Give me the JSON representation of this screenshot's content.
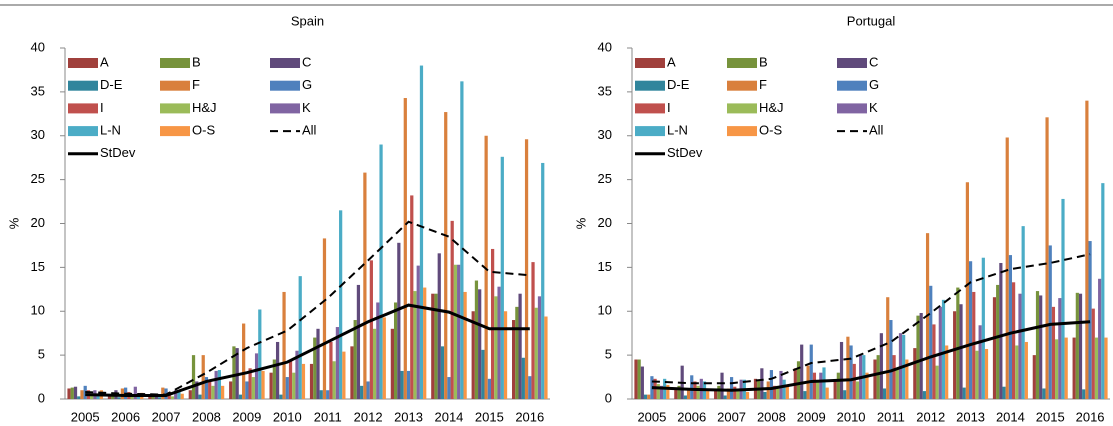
{
  "chart_data": [
    {
      "type": "bar",
      "title": "Spain",
      "y_label": "%",
      "categories": [
        "2005",
        "2006",
        "2007",
        "2008",
        "2009",
        "2010",
        "2011",
        "2012",
        "2013",
        "2014",
        "2015",
        "2016"
      ],
      "ylim": [
        0,
        40
      ],
      "yticks": [
        0,
        5,
        10,
        15,
        20,
        25,
        30,
        35,
        40
      ],
      "legend": "top-left",
      "legend_columns": 3,
      "series": [
        {
          "name": "A",
          "color": "#a0403c",
          "values": [
            1.2,
            0.5,
            0.3,
            1.0,
            2.0,
            3.0,
            4.0,
            6.0,
            8.0,
            12.0,
            10.0,
            9.0
          ]
        },
        {
          "name": "B",
          "color": "#77933c",
          "values": [
            1.3,
            0.5,
            0.4,
            5.0,
            6.0,
            4.5,
            7.0,
            9.0,
            11.0,
            12.0,
            13.5,
            10.5
          ]
        },
        {
          "name": "C",
          "color": "#604a7b",
          "values": [
            1.4,
            1.0,
            0.5,
            2.0,
            5.8,
            6.5,
            8.0,
            13.0,
            17.8,
            16.6,
            12.5,
            12.0
          ]
        },
        {
          "name": "D-E",
          "color": "#31859c",
          "values": [
            0.3,
            0.2,
            0.2,
            0.5,
            0.5,
            0.5,
            1.0,
            1.5,
            3.2,
            6.0,
            5.6,
            4.7
          ]
        },
        {
          "name": "F",
          "color": "#d9803d",
          "values": [
            1.0,
            1.2,
            1.3,
            5.0,
            8.6,
            12.2,
            18.3,
            25.8,
            34.3,
            32.7,
            30.0,
            29.6
          ]
        },
        {
          "name": "G",
          "color": "#4f81bd",
          "values": [
            1.5,
            1.3,
            1.2,
            2.5,
            2.0,
            2.5,
            1.0,
            2.0,
            3.2,
            2.5,
            2.3,
            2.6
          ]
        },
        {
          "name": "I",
          "color": "#c0504d",
          "values": [
            1.0,
            0.8,
            0.8,
            2.0,
            3.5,
            4.5,
            6.5,
            15.8,
            23.2,
            20.3,
            17.1,
            15.6
          ]
        },
        {
          "name": "H&J",
          "color": "#9bbb59",
          "values": [
            0.5,
            0.5,
            0.3,
            1.5,
            2.5,
            3.0,
            4.3,
            8.0,
            12.3,
            15.3,
            11.7,
            10.4
          ]
        },
        {
          "name": "K",
          "color": "#8064a2",
          "values": [
            1.0,
            1.4,
            1.0,
            3.2,
            5.2,
            5.5,
            8.2,
            11.0,
            15.2,
            15.3,
            12.8,
            11.7
          ]
        },
        {
          "name": "L-N",
          "color": "#4bacc6",
          "values": [
            0.4,
            0.6,
            0.8,
            3.3,
            10.2,
            14.0,
            21.5,
            29.0,
            38.0,
            36.2,
            27.6,
            26.9
          ]
        },
        {
          "name": "O-S",
          "color": "#f79646",
          "values": [
            1.0,
            0.7,
            0.6,
            1.5,
            3.2,
            4.0,
            5.4,
            9.3,
            12.7,
            12.2,
            10.0,
            9.4
          ]
        },
        {
          "name": "All",
          "color": "#000000",
          "type": "line",
          "dash": "dashed",
          "values": [
            0.8,
            0.6,
            0.5,
            3.0,
            5.8,
            7.8,
            11.5,
            15.8,
            20.2,
            18.5,
            14.5,
            14.1
          ]
        },
        {
          "name": "StDev",
          "color": "#000000",
          "type": "line",
          "dash": "solid",
          "values": [
            0.5,
            0.4,
            0.4,
            2.0,
            3.0,
            4.2,
            6.5,
            8.8,
            10.7,
            9.9,
            8.0,
            8.0
          ]
        }
      ]
    },
    {
      "type": "bar",
      "title": "Portugal",
      "y_label": "%",
      "categories": [
        "2005",
        "2006",
        "2007",
        "2008",
        "2009",
        "2010",
        "2011",
        "2012",
        "2013",
        "2014",
        "2015",
        "2016"
      ],
      "ylim": [
        0,
        40
      ],
      "yticks": [
        0,
        5,
        10,
        15,
        20,
        25,
        30,
        35,
        40
      ],
      "legend": "top-left",
      "legend_columns": 3,
      "series": [
        {
          "name": "A",
          "color": "#a0403c",
          "values": [
            4.5,
            1.3,
            1.0,
            2.3,
            3.5,
            2.0,
            4.5,
            5.8,
            10.0,
            11.6,
            5.0,
            7.0
          ]
        },
        {
          "name": "B",
          "color": "#77933c",
          "values": [
            4.5,
            1.5,
            1.5,
            2.1,
            4.3,
            3.0,
            5.0,
            9.5,
            12.7,
            13.0,
            12.3,
            12.1
          ]
        },
        {
          "name": "C",
          "color": "#604a7b",
          "values": [
            3.7,
            3.8,
            3.0,
            3.5,
            6.2,
            6.5,
            7.5,
            9.8,
            10.8,
            15.5,
            11.8,
            12.0
          ]
        },
        {
          "name": "D-E",
          "color": "#31859c",
          "values": [
            0.5,
            0.4,
            0.4,
            0.8,
            0.9,
            1.0,
            1.2,
            0.9,
            1.3,
            1.4,
            1.2,
            1.1
          ]
        },
        {
          "name": "F",
          "color": "#d9803d",
          "values": [
            0.5,
            1.0,
            1.2,
            2.0,
            3.8,
            7.1,
            11.6,
            18.9,
            24.7,
            29.8,
            32.1,
            34.0
          ]
        },
        {
          "name": "G",
          "color": "#4f81bd",
          "values": [
            2.6,
            2.7,
            2.5,
            3.3,
            6.2,
            6.1,
            9.0,
            12.9,
            15.7,
            16.4,
            17.5,
            18.0
          ]
        },
        {
          "name": "I",
          "color": "#c0504d",
          "values": [
            2.3,
            2.0,
            1.4,
            1.5,
            3.0,
            4.0,
            5.0,
            8.5,
            12.2,
            13.3,
            10.5,
            10.3
          ]
        },
        {
          "name": "H&J",
          "color": "#9bbb59",
          "values": [
            1.7,
            1.5,
            1.0,
            1.5,
            2.0,
            2.0,
            3.5,
            3.8,
            5.5,
            6.1,
            6.8,
            7.0
          ]
        },
        {
          "name": "K",
          "color": "#8064a2",
          "values": [
            1.5,
            2.3,
            2.2,
            3.2,
            3.0,
            5.0,
            7.5,
            10.5,
            8.4,
            12.0,
            11.5,
            13.7
          ]
        },
        {
          "name": "L-N",
          "color": "#4bacc6",
          "values": [
            2.3,
            2.0,
            2.2,
            2.2,
            3.6,
            5.0,
            7.3,
            11.3,
            16.1,
            19.7,
            22.8,
            24.6
          ]
        },
        {
          "name": "O-S",
          "color": "#f79646",
          "values": [
            1.6,
            0.9,
            0.8,
            1.5,
            1.3,
            3.0,
            4.5,
            6.1,
            5.7,
            6.5,
            7.0,
            7.0
          ]
        },
        {
          "name": "All",
          "color": "#000000",
          "type": "line",
          "dash": "dashed",
          "values": [
            2.0,
            1.8,
            1.8,
            2.3,
            4.1,
            4.6,
            6.5,
            9.8,
            13.3,
            14.8,
            15.5,
            16.5
          ]
        },
        {
          "name": "StDev",
          "color": "#000000",
          "type": "line",
          "dash": "solid",
          "values": [
            1.3,
            1.1,
            1.0,
            1.2,
            2.0,
            2.2,
            3.2,
            4.8,
            6.2,
            7.5,
            8.5,
            8.8
          ]
        }
      ]
    }
  ]
}
